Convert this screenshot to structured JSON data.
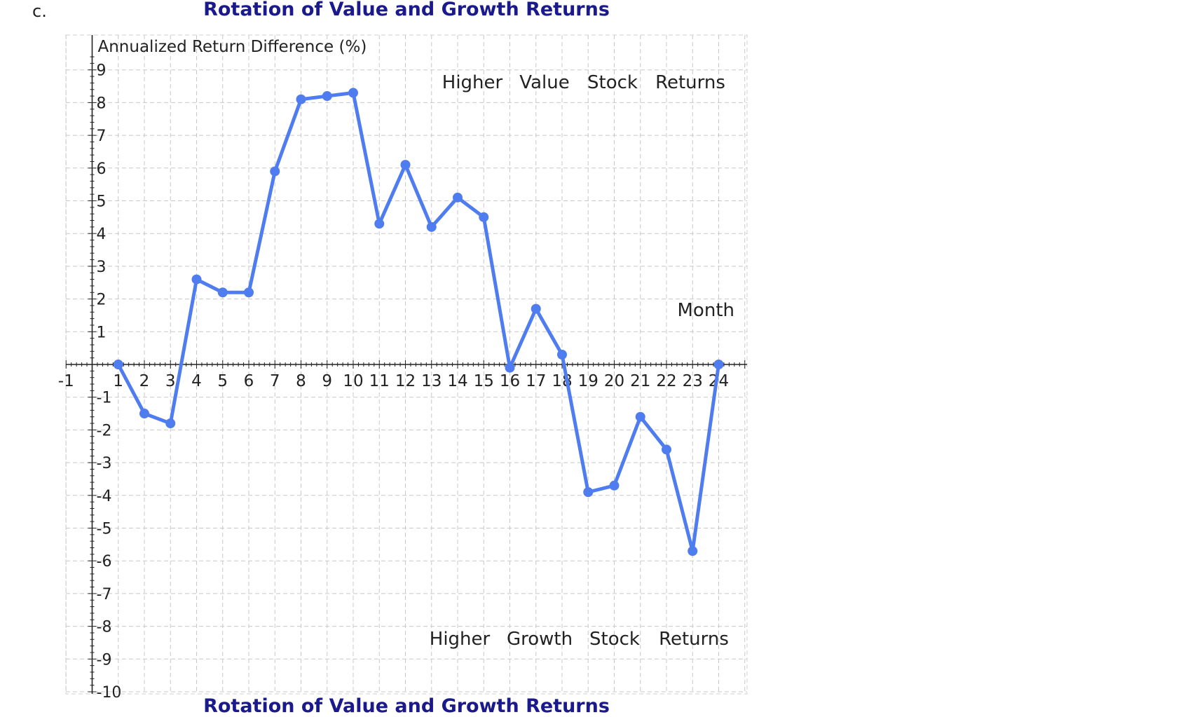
{
  "problem_label": "c.",
  "chart_data": {
    "type": "line",
    "title": "Rotation of Value and Growth Returns",
    "xlabel": "Month",
    "ylabel": "Annualized Return Difference (%)",
    "xlim": [
      -1,
      25
    ],
    "ylim": [
      -10,
      9.5
    ],
    "x_ticks": [
      -1,
      1,
      2,
      3,
      4,
      5,
      6,
      7,
      8,
      9,
      10,
      11,
      12,
      13,
      14,
      15,
      16,
      17,
      18,
      19,
      20,
      21,
      22,
      23,
      24
    ],
    "y_ticks": [
      9,
      8,
      7,
      6,
      5,
      4,
      3,
      2,
      1,
      -1,
      -2,
      -3,
      -4,
      -5,
      -6,
      -7,
      -8,
      -9,
      -10
    ],
    "grid": true,
    "series": [
      {
        "name": "Annualized Return Difference",
        "color": "#4f7df0",
        "x": [
          1,
          2,
          3,
          4,
          5,
          6,
          7,
          8,
          9,
          10,
          11,
          12,
          13,
          14,
          15,
          16,
          17,
          18,
          19,
          20,
          21,
          22,
          23,
          24
        ],
        "y": [
          0,
          -1.5,
          -1.8,
          2.6,
          2.2,
          2.2,
          5.9,
          8.1,
          8.2,
          8.3,
          4.3,
          6.1,
          4.2,
          5.1,
          4.5,
          -0.1,
          1.7,
          0.3,
          -3.9,
          -3.7,
          -1.6,
          -2.6,
          -5.7,
          0
        ]
      }
    ],
    "annotations": [
      {
        "id": "top",
        "words": [
          "Higher",
          "Value",
          "Stock",
          "Returns"
        ]
      },
      {
        "id": "bottom",
        "words": [
          "Higher",
          "Growth",
          "Stock",
          "Returns"
        ]
      }
    ]
  },
  "cut_off_title": "Rotation of Value and Growth Returns"
}
